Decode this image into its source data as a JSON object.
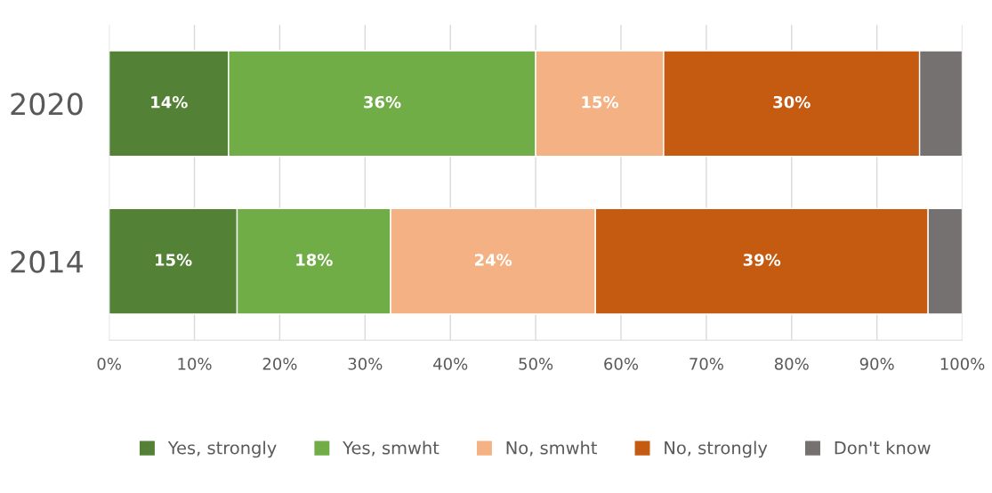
{
  "chart_data": {
    "type": "bar",
    "orientation": "horizontal",
    "stacked": true,
    "categories": [
      "2020",
      "2014"
    ],
    "series": [
      {
        "name": "Yes, strongly",
        "color": "#538135",
        "values": [
          14,
          15
        ],
        "value_labels": [
          "14%",
          "15%"
        ]
      },
      {
        "name": "Yes, smwht",
        "color": "#70ad47",
        "values": [
          36,
          18
        ],
        "value_labels": [
          "36%",
          "18%"
        ]
      },
      {
        "name": "No, smwht",
        "color": "#f4b183",
        "values": [
          15,
          24
        ],
        "value_labels": [
          "15%",
          "24%"
        ]
      },
      {
        "name": "No, strongly",
        "color": "#c55a11",
        "values": [
          30,
          39
        ],
        "value_labels": [
          "30%",
          "39%"
        ]
      },
      {
        "name": "Don't know",
        "color": "#767171",
        "values": [
          5,
          4
        ],
        "value_labels": [
          null,
          null
        ]
      }
    ],
    "xlim": [
      0,
      100
    ],
    "xticks": [
      {
        "value": 0,
        "label": "0%"
      },
      {
        "value": 10,
        "label": "10%"
      },
      {
        "value": 20,
        "label": "20%"
      },
      {
        "value": 30,
        "label": "30%"
      },
      {
        "value": 40,
        "label": "40%"
      },
      {
        "value": 50,
        "label": "50%"
      },
      {
        "value": 60,
        "label": "60%"
      },
      {
        "value": 70,
        "label": "70%"
      },
      {
        "value": 80,
        "label": "80%"
      },
      {
        "value": 90,
        "label": "90%"
      },
      {
        "value": 100,
        "label": "100%"
      }
    ],
    "grid": "x",
    "legend": "bottom"
  }
}
